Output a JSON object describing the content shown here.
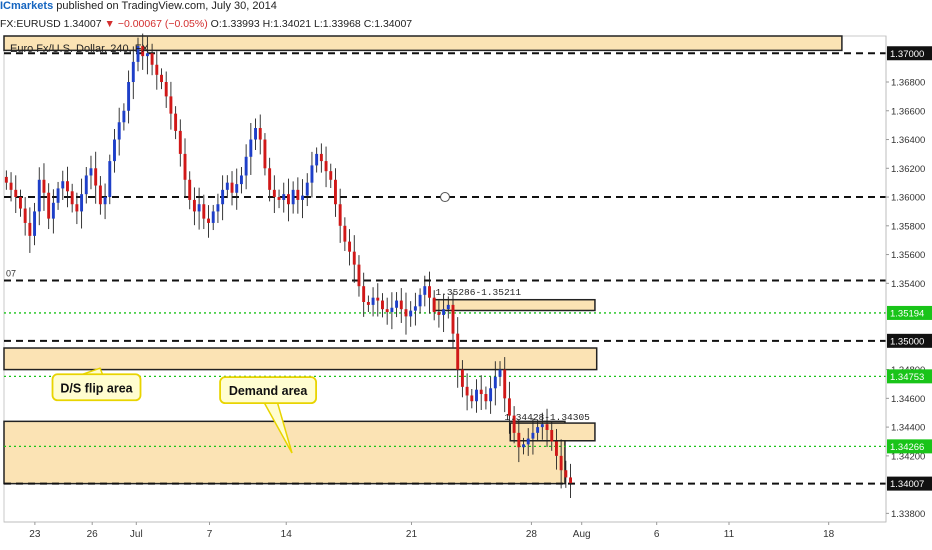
{
  "header": {
    "publisher": "ICmarkets",
    "published_text": "published on TradingView.com, July 30, 2014"
  },
  "ohlc": {
    "symbol": "FX:EURUSD",
    "last": "1.34007",
    "arrow": "▼",
    "change": "−0.00067 (−0.05%)",
    "open_label": "O:",
    "open": "1.33993",
    "high_label": "H:",
    "high": "1.34021",
    "low_label": "L:",
    "low": "1.33968",
    "close_label": "C:",
    "close": "1.34007"
  },
  "chart_data": {
    "type": "candlestick",
    "title": "Euro Fx/U.S. Dollar, 240, FX",
    "ylim": [
      1.3374,
      1.3712
    ],
    "y_ticks": [
      "1.37000",
      "1.36800",
      "1.36600",
      "1.36400",
      "1.36200",
      "1.36000",
      "1.35800",
      "1.35600",
      "1.35400",
      "1.35194",
      "1.35000",
      "1.34800",
      "1.34753",
      "1.34600",
      "1.34400",
      "1.34266",
      "1.34200",
      "1.34007",
      "1.33800"
    ],
    "x_ticks": [
      "23",
      "26",
      "Jul",
      "7",
      "14",
      "21",
      "28",
      "Aug",
      "6",
      "11",
      "18"
    ],
    "path_prices": [
      1.361,
      1.3605,
      1.36,
      1.3592,
      1.3582,
      1.3573,
      1.359,
      1.3612,
      1.3603,
      1.3585,
      1.3596,
      1.3606,
      1.3611,
      1.3604,
      1.3595,
      1.359,
      1.3602,
      1.3615,
      1.362,
      1.3608,
      1.3595,
      1.36,
      1.3625,
      1.364,
      1.3652,
      1.366,
      1.368,
      1.3694,
      1.3705,
      1.3698,
      1.37,
      1.3692,
      1.3685,
      1.368,
      1.367,
      1.3658,
      1.3646,
      1.363,
      1.3612,
      1.3598,
      1.359,
      1.3595,
      1.3585,
      1.3582,
      1.359,
      1.3595,
      1.3605,
      1.361,
      1.3603,
      1.3609,
      1.3615,
      1.3628,
      1.364,
      1.3648,
      1.364,
      1.362,
      1.3605,
      1.36,
      1.3598,
      1.3602,
      1.3595,
      1.3605,
      1.3598,
      1.3601,
      1.361,
      1.3622,
      1.363,
      1.3625,
      1.3618,
      1.3612,
      1.3595,
      1.358,
      1.3569,
      1.3562,
      1.3553,
      1.3538,
      1.3527,
      1.3525,
      1.353,
      1.3528,
      1.3522,
      1.352,
      1.3523,
      1.3528,
      1.3522,
      1.3517,
      1.3521,
      1.3524,
      1.3532,
      1.3538,
      1.353,
      1.352,
      1.3518,
      1.3522,
      1.3525,
      1.3505,
      1.348,
      1.3468,
      1.3462,
      1.3458,
      1.3466,
      1.3463,
      1.3458,
      1.3467,
      1.3475,
      1.348,
      1.346,
      1.3448,
      1.3436,
      1.3426,
      1.3428,
      1.3432,
      1.3436,
      1.344,
      1.3442,
      1.3438,
      1.343,
      1.342,
      1.341,
      1.3405,
      1.3401
    ],
    "levels": [
      {
        "price": 1.37,
        "style": "dashed-black"
      },
      {
        "price": 1.36,
        "style": "dashed-black"
      },
      {
        "price": 1.3542,
        "style": "dashed-black",
        "edge_label": "07"
      },
      {
        "price": 1.35,
        "style": "dashed-black"
      },
      {
        "price": 1.34007,
        "style": "dashed-black"
      },
      {
        "price": 1.35194,
        "style": "dotted-green"
      },
      {
        "price": 1.34753,
        "style": "dotted-green"
      },
      {
        "price": 1.34266,
        "style": "dotted-green"
      }
    ],
    "zones": [
      {
        "name": "top",
        "top": 1.3712,
        "bottom": 1.3702,
        "x0": 0.0,
        "x1": 0.95
      },
      {
        "name": "d-s-flip",
        "top": 1.3495,
        "bottom": 1.348,
        "x0": 0.0,
        "x1": 0.672
      },
      {
        "name": "demand",
        "top": 1.3444,
        "bottom": 1.34007,
        "x0": 0.0,
        "x1": 0.636
      },
      {
        "name": "box-35286",
        "top": 1.35286,
        "bottom": 1.35211,
        "x0": 0.487,
        "x1": 0.67
      },
      {
        "name": "box-34428",
        "top": 1.34428,
        "bottom": 1.34305,
        "x0": 0.574,
        "x1": 0.67
      }
    ],
    "annotations": [
      {
        "text": "1.35286-1.35211",
        "price": 1.3532,
        "x": 0.487
      },
      {
        "text": "1.34428-1.34305",
        "price": 1.3445,
        "x": 0.565
      },
      {
        "text": "D/S flip area",
        "x": 0.055,
        "price": 1.3467
      },
      {
        "text": "Demand area",
        "x": 0.245,
        "price": 1.3465
      }
    ],
    "price_tags": [
      {
        "price": 1.37,
        "label": "1.37000",
        "style": "black"
      },
      {
        "price": 1.35194,
        "label": "1.35194",
        "style": "green"
      },
      {
        "price": 1.35,
        "label": "1.35000",
        "style": "black"
      },
      {
        "price": 1.34753,
        "label": "1.34753",
        "style": "green"
      },
      {
        "price": 1.34266,
        "label": "1.34266",
        "style": "green"
      },
      {
        "price": 1.34007,
        "label": "1.34007",
        "style": "black"
      }
    ],
    "colors": {
      "up": "#1e3fc8",
      "down": "#d01818",
      "zone_fill": "#fbe3b4",
      "green": "#19c419",
      "callout_bg": "#fffdd0",
      "callout_border": "#e8d400"
    }
  }
}
